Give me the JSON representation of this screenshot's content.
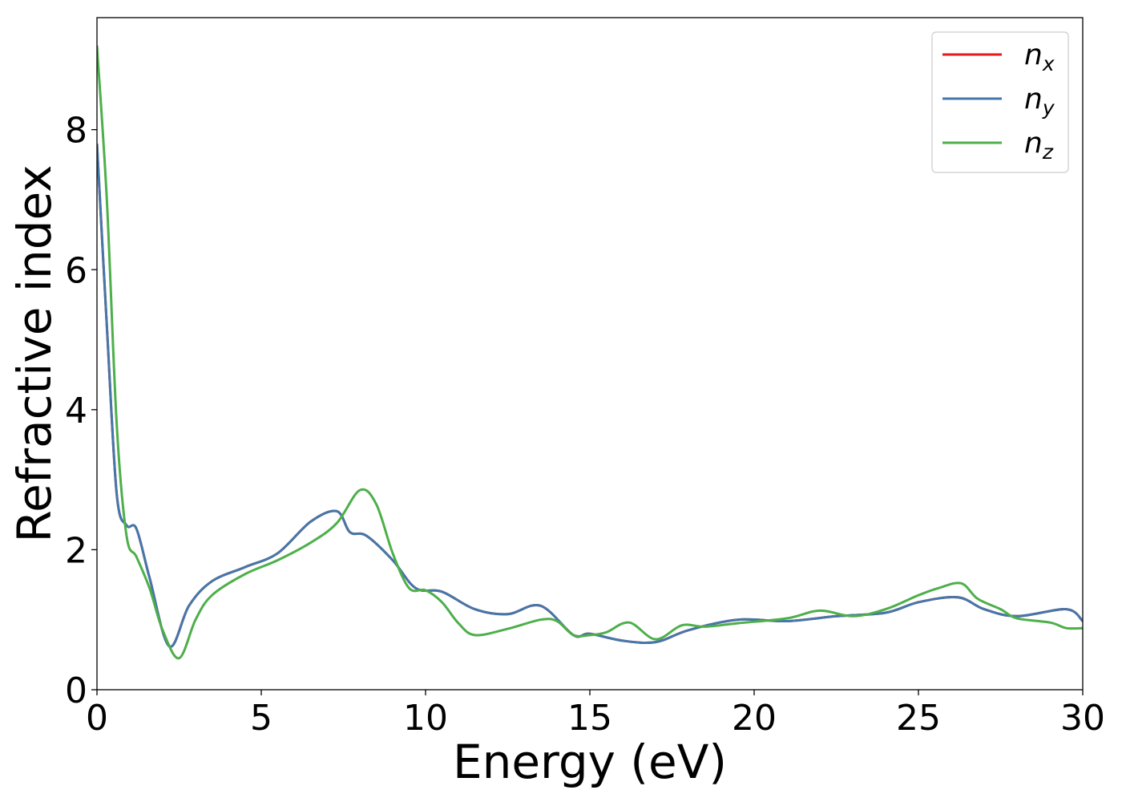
{
  "chart_data": {
    "type": "line",
    "title": "",
    "xlabel": "Energy (eV)",
    "ylabel": "Refractive index",
    "xlim": [
      0,
      30
    ],
    "ylim": [
      0,
      9.6
    ],
    "xticks": [
      0,
      5,
      10,
      15,
      20,
      25,
      30
    ],
    "yticks": [
      0,
      2,
      4,
      6,
      8
    ],
    "grid": false,
    "legend_position": "top-right",
    "series": [
      {
        "name": "n_x",
        "label_base": "n",
        "label_sub": "x",
        "color": "#e41a1c",
        "x": [
          0,
          0.3,
          0.6,
          0.9,
          1.2,
          1.6,
          2.2,
          2.8,
          3.5,
          4.5,
          5.5,
          6.5,
          7.3,
          7.7,
          8.2,
          9.0,
          9.7,
          10.5,
          11.5,
          12.5,
          13.5,
          14.5,
          15.0,
          16.0,
          17.0,
          18.0,
          19.5,
          21.0,
          22.5,
          24.0,
          25.0,
          26.2,
          27.0,
          28.0,
          29.5,
          30.0
        ],
        "y": [
          7.8,
          5.2,
          2.8,
          2.35,
          2.3,
          1.6,
          0.62,
          1.2,
          1.55,
          1.75,
          1.95,
          2.4,
          2.55,
          2.25,
          2.2,
          1.85,
          1.45,
          1.4,
          1.15,
          1.08,
          1.2,
          0.78,
          0.8,
          0.7,
          0.68,
          0.85,
          1.0,
          0.98,
          1.05,
          1.1,
          1.25,
          1.32,
          1.15,
          1.05,
          1.15,
          0.98
        ]
      },
      {
        "name": "n_y",
        "label_base": "n",
        "label_sub": "y",
        "color": "#4477aa",
        "x": [
          0,
          0.3,
          0.6,
          0.9,
          1.2,
          1.6,
          2.2,
          2.8,
          3.5,
          4.5,
          5.5,
          6.5,
          7.3,
          7.7,
          8.2,
          9.0,
          9.7,
          10.5,
          11.5,
          12.5,
          13.5,
          14.5,
          15.0,
          16.0,
          17.0,
          18.0,
          19.5,
          21.0,
          22.5,
          24.0,
          25.0,
          26.2,
          27.0,
          28.0,
          29.5,
          30.0
        ],
        "y": [
          7.8,
          5.2,
          2.8,
          2.35,
          2.3,
          1.6,
          0.62,
          1.2,
          1.55,
          1.75,
          1.95,
          2.4,
          2.55,
          2.25,
          2.2,
          1.85,
          1.45,
          1.4,
          1.15,
          1.08,
          1.2,
          0.78,
          0.8,
          0.7,
          0.68,
          0.85,
          1.0,
          0.98,
          1.05,
          1.1,
          1.25,
          1.32,
          1.15,
          1.05,
          1.15,
          0.98
        ]
      },
      {
        "name": "n_z",
        "label_base": "n",
        "label_sub": "z",
        "color": "#4daf4a",
        "x": [
          0,
          0.3,
          0.6,
          0.9,
          1.2,
          1.6,
          2.0,
          2.5,
          3.0,
          3.5,
          4.5,
          5.5,
          6.5,
          7.3,
          8.0,
          8.5,
          9.0,
          9.5,
          10.0,
          10.5,
          11.0,
          11.5,
          12.5,
          13.5,
          14.0,
          14.5,
          15.0,
          15.5,
          16.2,
          17.0,
          17.8,
          18.5,
          19.5,
          21.0,
          22.0,
          23.0,
          24.0,
          25.0,
          25.6,
          26.3,
          26.8,
          27.5,
          28.0,
          29.0,
          29.5,
          30.0
        ],
        "y": [
          9.2,
          7.0,
          3.8,
          2.2,
          1.9,
          1.45,
          0.85,
          0.45,
          1.0,
          1.35,
          1.65,
          1.85,
          2.1,
          2.38,
          2.85,
          2.65,
          1.95,
          1.45,
          1.42,
          1.25,
          0.95,
          0.78,
          0.87,
          1.0,
          0.98,
          0.78,
          0.78,
          0.82,
          0.96,
          0.72,
          0.92,
          0.9,
          0.95,
          1.02,
          1.13,
          1.05,
          1.15,
          1.35,
          1.45,
          1.52,
          1.3,
          1.15,
          1.02,
          0.96,
          0.88,
          0.88
        ]
      }
    ]
  }
}
